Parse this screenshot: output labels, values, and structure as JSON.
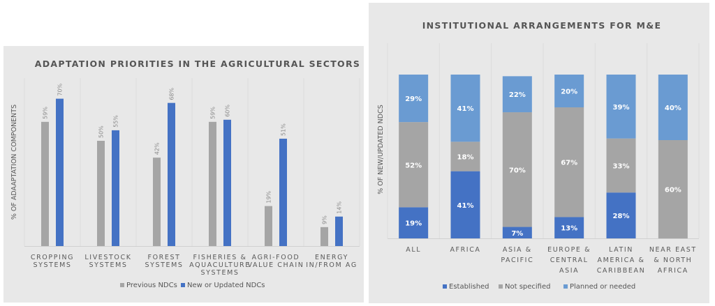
{
  "chart_data": [
    {
      "type": "bar",
      "title": "ADAPTATION PRIORITIES IN THE AGRICULTURAL SECTORS",
      "xlabel": "",
      "ylabel": "% OF ADAAPTATION COMPONENTS",
      "ylim": [
        0,
        80
      ],
      "grid": false,
      "legend_position": "bottom",
      "categories": [
        [
          "CROPPING",
          "SYSTEMS"
        ],
        [
          "LIVESTOCK",
          "SYSTEMS"
        ],
        [
          "FOREST",
          "SYSTEMS"
        ],
        [
          "FISHERIES &",
          "AQUACULTURE",
          "SYSTEMS"
        ],
        [
          "AGRI-FOOD",
          "VALUE CHAIN"
        ],
        [
          "ENERGY",
          "IN/FROM AG"
        ]
      ],
      "series": [
        {
          "name": "Previous NDCs",
          "color": "#a5a5a5",
          "values": [
            59,
            50,
            42,
            59,
            19,
            9
          ]
        },
        {
          "name": "New or Updated NDCs",
          "color": "#4472c4",
          "values": [
            70,
            55,
            68,
            60,
            51,
            14
          ]
        }
      ],
      "data_label_suffix": "%"
    },
    {
      "type": "bar",
      "stacked": true,
      "title": "INSTITUTIONAL ARRANGEMENTS FOR M&E",
      "xlabel": "",
      "ylabel": "% OF NEW/UPDATED NDCS",
      "ylim": [
        0,
        100
      ],
      "grid": false,
      "legend_position": "bottom",
      "categories": [
        [
          "ALL"
        ],
        [
          "AFRICA"
        ],
        [
          "ASIA &",
          "PACIFIC"
        ],
        [
          "EUROPE &",
          "CENTRAL",
          "ASIA"
        ],
        [
          "LATIN",
          "AMERICA &",
          "CARIBBEAN"
        ],
        [
          "NEAR EAST",
          "& NORTH",
          "AFRICA"
        ]
      ],
      "series": [
        {
          "name": "Established",
          "color": "#4472c4",
          "values": [
            19,
            41,
            7,
            13,
            28,
            0
          ]
        },
        {
          "name": "Not specified",
          "color": "#a5a5a5",
          "values": [
            52,
            18,
            70,
            67,
            33,
            60
          ]
        },
        {
          "name": "Planned or needed",
          "color": "#6a9bd2",
          "values": [
            29,
            41,
            22,
            20,
            39,
            40
          ]
        }
      ],
      "data_label_suffix": "%"
    }
  ]
}
